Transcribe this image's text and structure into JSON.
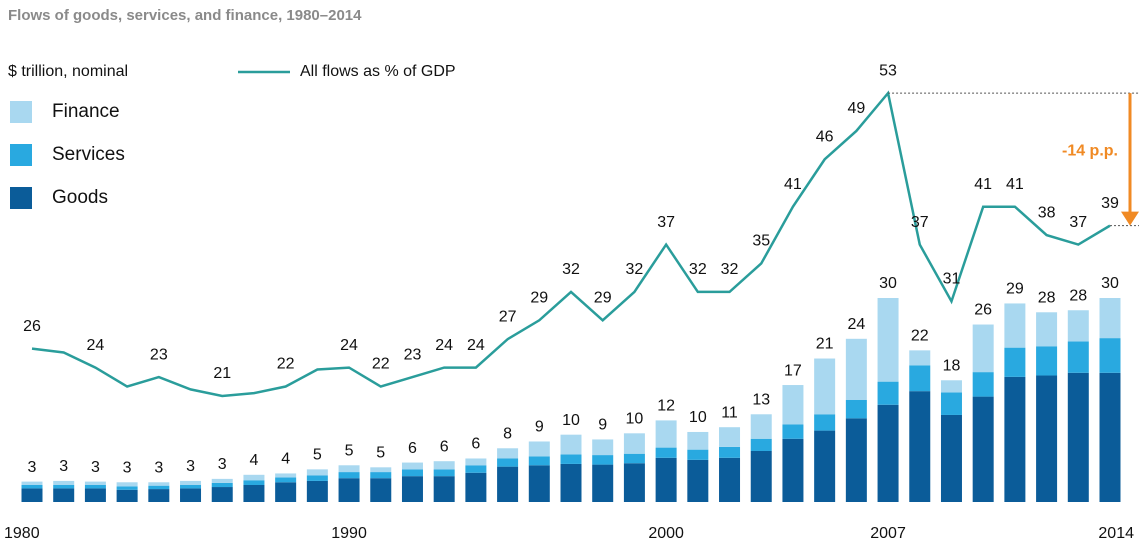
{
  "chart_data": {
    "type": "bar",
    "title": "Flows of goods, services, and finance, 1980–2014",
    "y_axis_label": "$ trillion, nominal",
    "categories": [
      "1980",
      null,
      null,
      null,
      null,
      null,
      null,
      null,
      null,
      null,
      "1990",
      null,
      null,
      null,
      null,
      null,
      null,
      null,
      null,
      null,
      "2000",
      null,
      null,
      null,
      null,
      null,
      null,
      "2007",
      null,
      null,
      null,
      null,
      null,
      null,
      "2014"
    ],
    "ylim": [
      0,
      65
    ],
    "y2lim": [
      9.8,
      56.5
    ],
    "series": [
      {
        "name": "Goods",
        "color": "#0b5c99",
        "values": [
          2,
          2,
          2,
          1.8,
          1.9,
          2,
          2.2,
          2.5,
          2.9,
          3.1,
          3.5,
          3.5,
          3.8,
          3.8,
          4.3,
          5.2,
          5.4,
          5.6,
          5.5,
          5.7,
          6.5,
          6.2,
          6.5,
          7.5,
          9.3,
          10.5,
          12.3,
          14.3,
          16.3,
          12.8,
          15.5,
          18.4,
          18.6,
          19.0,
          19.0
        ]
      },
      {
        "name": "Services",
        "color": "#29a9e0",
        "values": [
          0.5,
          0.5,
          0.5,
          0.5,
          0.5,
          0.5,
          0.6,
          0.7,
          0.7,
          0.8,
          0.9,
          0.9,
          1.0,
          1.0,
          1.1,
          1.2,
          1.3,
          1.4,
          1.4,
          1.4,
          1.5,
          1.5,
          1.6,
          1.8,
          2.1,
          2.4,
          2.7,
          3.4,
          3.8,
          3.3,
          3.6,
          4.3,
          4.3,
          4.6,
          5.1
        ]
      },
      {
        "name": "Finance",
        "color": "#a9d8f0",
        "values": [
          0.5,
          0.6,
          0.5,
          0.6,
          0.5,
          0.6,
          0.6,
          0.8,
          0.6,
          0.9,
          1.0,
          0.7,
          1.0,
          1.2,
          1.0,
          1.5,
          2.2,
          2.9,
          2.3,
          3.0,
          4.0,
          2.6,
          2.9,
          3.6,
          5.8,
          8.2,
          9.0,
          12.3,
          2.2,
          1.8,
          7.0,
          6.5,
          5.0,
          4.6,
          5.9
        ]
      },
      {
        "name": "All flows as % of GDP",
        "type": "line",
        "axis": "y2",
        "color": "#2a9d9b",
        "values": [
          26,
          25.6,
          24,
          22.0,
          23,
          21.7,
          21,
          21.3,
          22,
          23.8,
          24,
          22,
          23,
          24,
          24,
          27,
          29,
          32,
          29,
          32,
          37,
          32,
          32,
          35,
          41,
          46,
          49,
          53,
          37,
          31,
          41,
          41,
          38,
          37,
          39
        ],
        "value_labels": [
          "26",
          null,
          "24",
          null,
          "23",
          null,
          "21",
          null,
          "22",
          null,
          "24",
          "22",
          "23",
          "24",
          "24",
          "27",
          "29",
          "32",
          "29",
          "32",
          "37",
          "32",
          "32",
          "35",
          "41",
          "46",
          "49",
          "53",
          "37",
          "31",
          "41",
          "41",
          "38",
          "37",
          "39"
        ]
      }
    ],
    "total_labels": [
      3,
      3,
      3,
      3,
      3,
      3,
      3,
      4,
      4,
      5,
      5,
      5,
      6,
      6,
      6,
      8,
      9,
      10,
      9,
      10,
      12,
      10,
      11,
      13,
      17,
      21,
      24,
      30,
      22,
      18,
      26,
      29,
      28,
      28,
      30
    ],
    "annotation": "-14 p.p.",
    "annotation_color": "#f08a24"
  }
}
